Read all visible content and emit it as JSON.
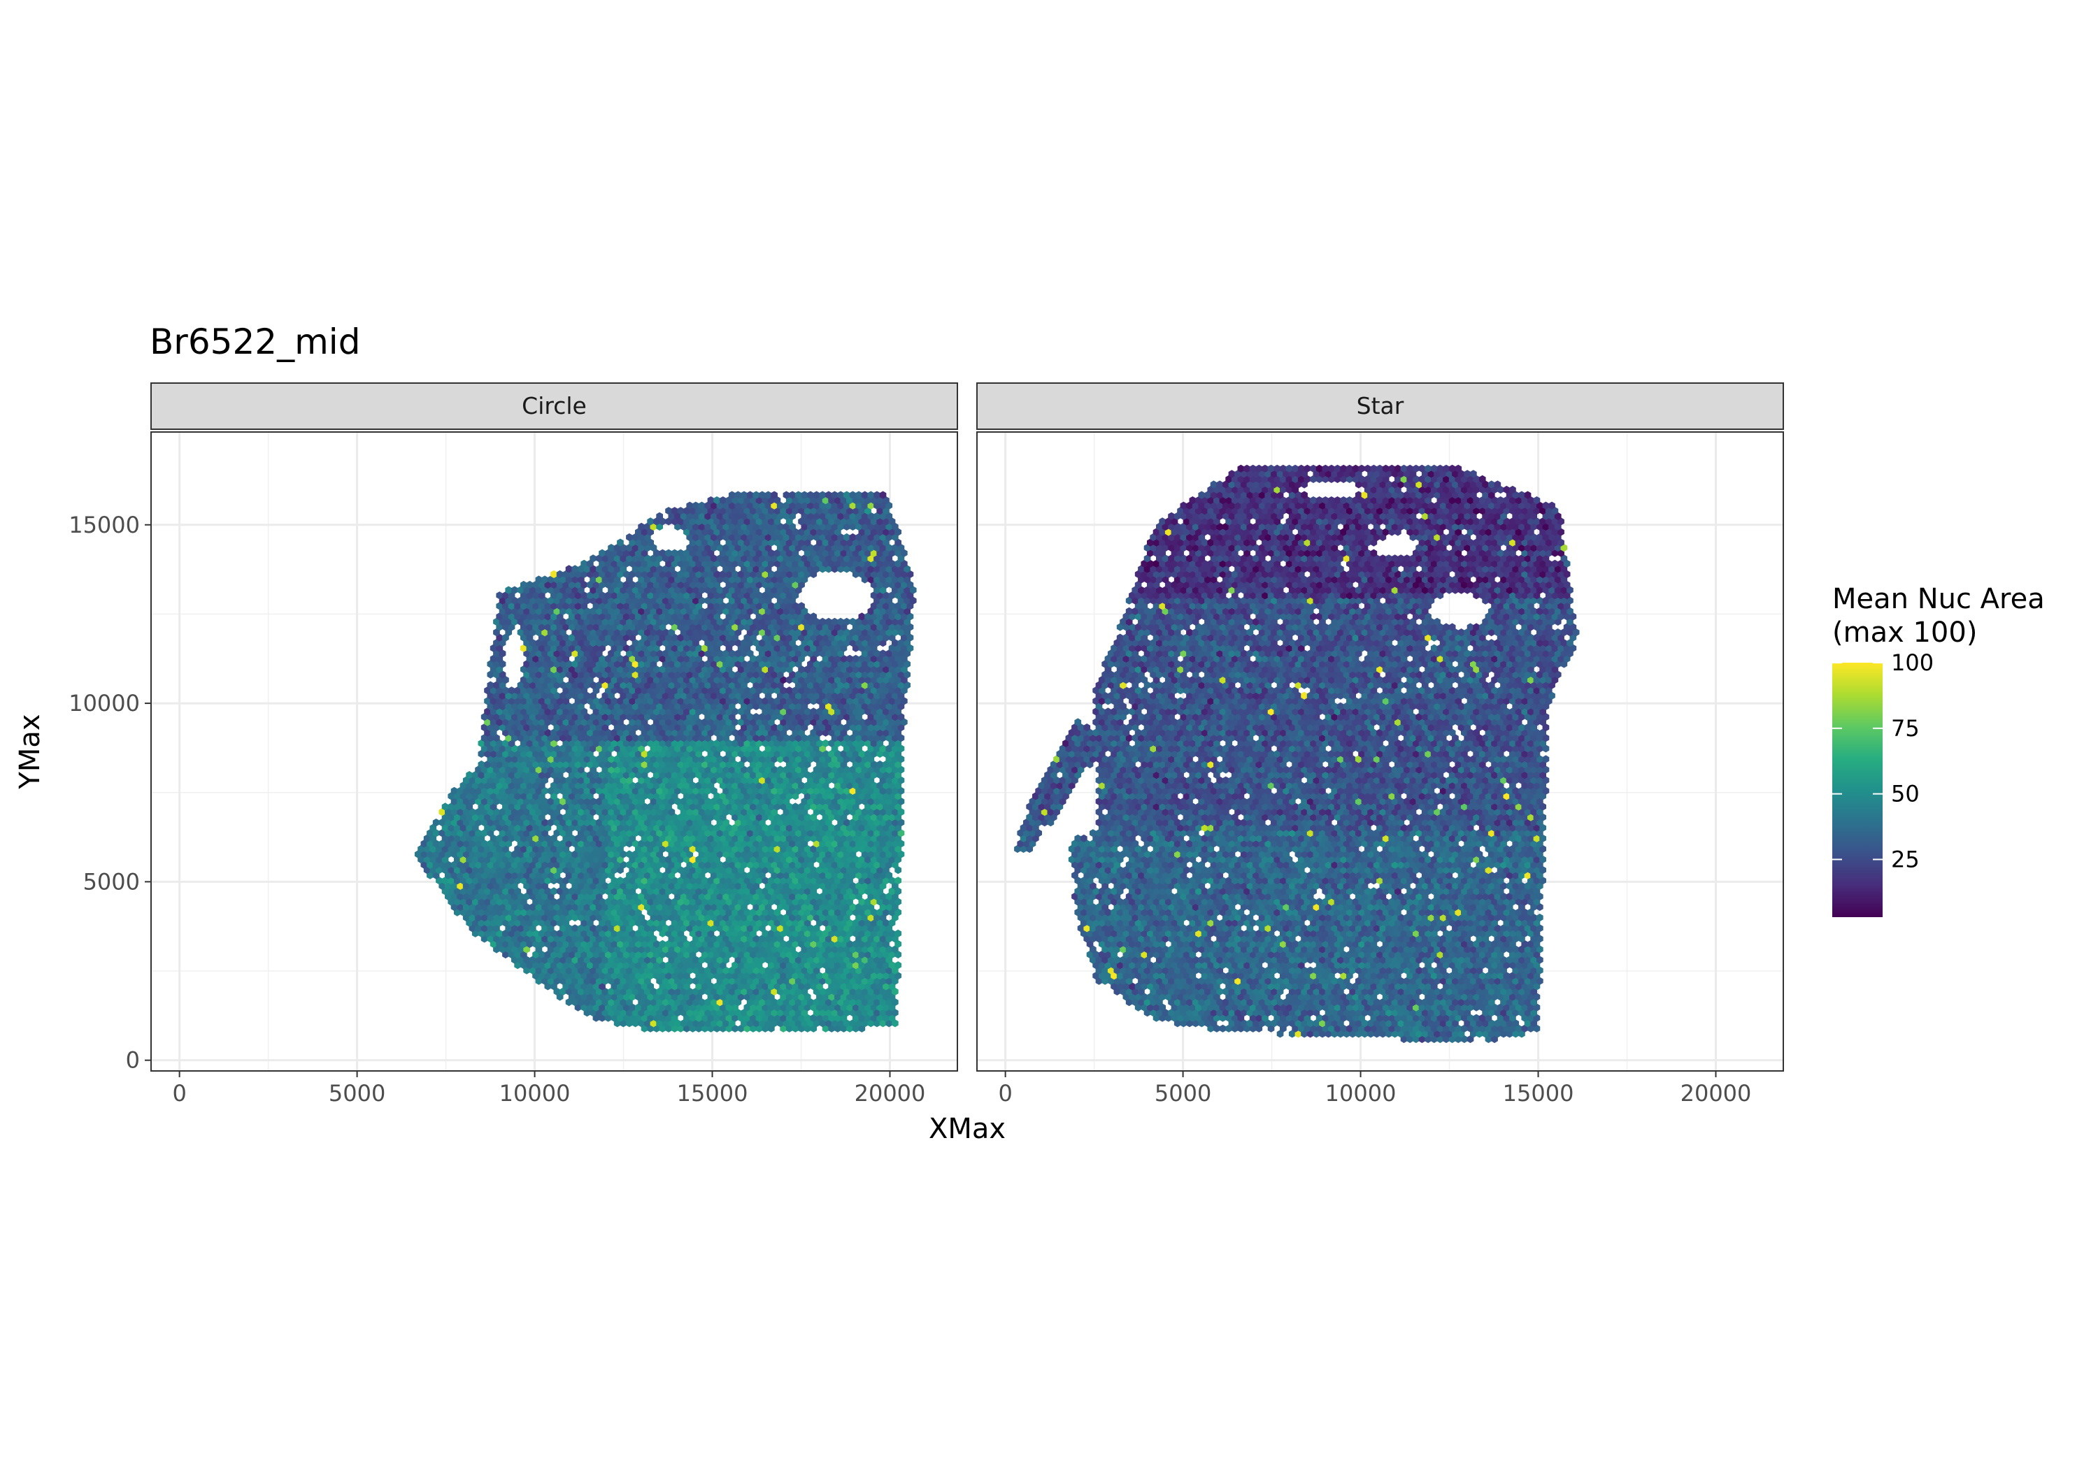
{
  "chart_data": {
    "type": "heatmap",
    "subtype": "hexbin",
    "title": "Br6522_mid",
    "xlabel": "XMax",
    "ylabel": "YMax",
    "xlim": [
      -800,
      21900
    ],
    "ylim": [
      -300,
      17600
    ],
    "x_ticks": [
      0,
      5000,
      10000,
      15000,
      20000
    ],
    "x_tick_labels": [
      "0",
      "5000",
      "10000",
      "15000",
      "20000"
    ],
    "y_ticks": [
      0,
      5000,
      10000,
      15000
    ],
    "y_tick_labels": [
      "0",
      "5000",
      "10000",
      "15000"
    ],
    "grid": true,
    "legend_position": "right",
    "colorbar": {
      "title_lines": [
        "Mean Nuc Area",
        "(max 100)"
      ],
      "min": 3,
      "max": 100,
      "ticks": [
        25,
        50,
        75,
        100
      ],
      "tick_labels": [
        "25",
        "50",
        "75",
        "100"
      ],
      "colormap": "viridis"
    },
    "facets": [
      {
        "label": "Circle",
        "outline": [
          [
            8400,
            8300
          ],
          [
            9000,
            13100
          ],
          [
            11500,
            14000
          ],
          [
            13700,
            15400
          ],
          [
            15800,
            15900
          ],
          [
            19900,
            15900
          ],
          [
            20700,
            13300
          ],
          [
            20400,
            9200
          ],
          [
            20200,
            900
          ],
          [
            13400,
            800
          ],
          [
            11500,
            1200
          ],
          [
            8200,
            3600
          ],
          [
            6600,
            5800
          ],
          [
            7400,
            7200
          ]
        ],
        "holes": [
          [
            18500,
            13000,
            1050,
            700
          ],
          [
            13800,
            14600,
            550,
            380
          ],
          [
            9400,
            11200,
            300,
            800
          ]
        ],
        "mean_by_band": [
          {
            "x_range": [
              6500,
              12000
            ],
            "y_range": [
              0,
              9000
            ],
            "mean": 42
          },
          {
            "x_range": [
              12000,
              20800
            ],
            "y_range": [
              0,
              9000
            ],
            "mean": 50
          },
          {
            "x_range": [
              6500,
              20800
            ],
            "y_range": [
              9000,
              16000
            ],
            "mean": 32
          }
        ]
      },
      {
        "label": "Star",
        "outline": [
          [
            1800,
            6100
          ],
          [
            2600,
            6500
          ],
          [
            2500,
            10500
          ],
          [
            3000,
            11500
          ],
          [
            4200,
            15000
          ],
          [
            6500,
            16600
          ],
          [
            12500,
            16700
          ],
          [
            15600,
            15500
          ],
          [
            16100,
            11800
          ],
          [
            15300,
            10000
          ],
          [
            15000,
            800
          ],
          [
            13300,
            500
          ],
          [
            6200,
            800
          ],
          [
            4300,
            1100
          ],
          [
            2600,
            2200
          ],
          [
            2000,
            4000
          ]
        ],
        "arm": [
          [
            200,
            5800
          ],
          [
            700,
            5800
          ],
          [
            2400,
            8300
          ],
          [
            3000,
            9000
          ],
          [
            2000,
            9500
          ],
          [
            800,
            7500
          ]
        ],
        "holes": [
          [
            12800,
            12600,
            850,
            480
          ],
          [
            11000,
            14400,
            650,
            300
          ],
          [
            9200,
            16000,
            900,
            230
          ]
        ],
        "mean_by_band": [
          {
            "x_range": [
              200,
              16200
            ],
            "y_range": [
              0,
              6500
            ],
            "mean": 35
          },
          {
            "x_range": [
              200,
              16200
            ],
            "y_range": [
              6500,
              13000
            ],
            "mean": 28
          },
          {
            "x_range": [
              200,
              16200
            ],
            "y_range": [
              13000,
              17000
            ],
            "mean": 17
          }
        ]
      }
    ]
  }
}
